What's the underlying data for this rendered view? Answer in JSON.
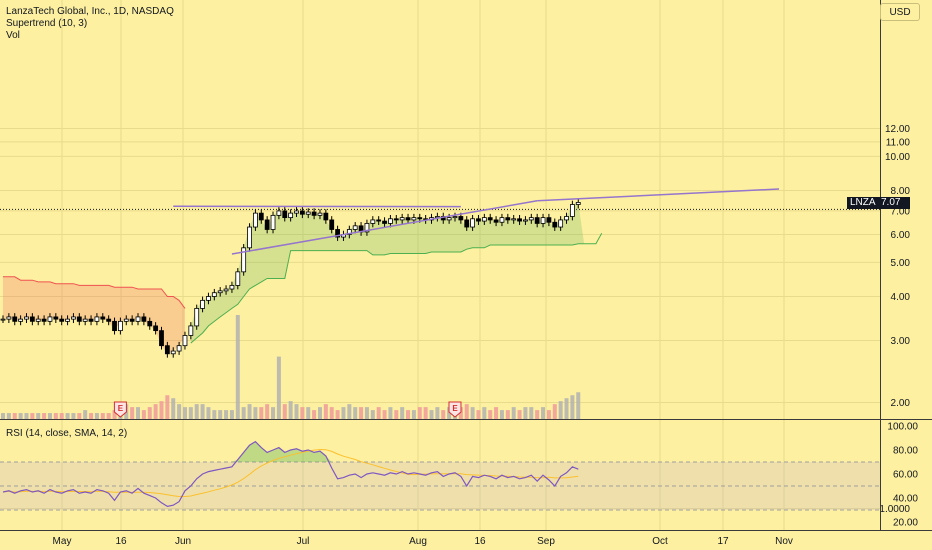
{
  "header": {
    "title": "LanzaTech Global, Inc., 1D, NASDAQ",
    "indicator_supertrend": "Supertrend (10, 3)",
    "indicator_vol": "Vol",
    "currency": "USD"
  },
  "rsi_panel": {
    "label": "RSI (14, close, SMA, 14, 2)"
  },
  "current_price": {
    "symbol": "LNZA",
    "value": "7.07",
    "price": 7.07
  },
  "earnings_marker_label": "E",
  "colors": {
    "background": "#fdf0a0",
    "candle_body": "#000000",
    "supertrend_up": "#4caf50",
    "supertrend_down": "#ef5350",
    "trendline": "#9575cd",
    "rsi_line": "#7e57c2",
    "volume_up": "#b2b2b2",
    "volume_down": "#ef9a9a"
  },
  "chart_data": [
    {
      "type": "candlestick",
      "title": "LanzaTech Global, Inc., 1D, NASDAQ",
      "x_ticks": [
        "May",
        "16",
        "Jun",
        "Jul",
        "Aug",
        "16",
        "Sep",
        "Oct",
        "17",
        "Nov"
      ],
      "y_ticks": [
        "1.0000",
        "2.00",
        "3.00",
        "4.00",
        "5.00",
        "6.00",
        "7.00",
        "8.00",
        "10.00",
        "11.00",
        "12.00"
      ],
      "scale": "log",
      "ylim": [
        0.7,
        13.5
      ],
      "closes": [
        3.45,
        3.5,
        3.4,
        3.45,
        3.5,
        3.4,
        3.45,
        3.4,
        3.5,
        3.45,
        3.4,
        3.45,
        3.5,
        3.4,
        3.45,
        3.4,
        3.5,
        3.45,
        3.4,
        3.2,
        3.4,
        3.45,
        3.4,
        3.5,
        3.4,
        3.3,
        3.2,
        2.9,
        2.75,
        2.8,
        2.9,
        3.1,
        3.3,
        3.7,
        3.9,
        4.0,
        4.1,
        4.15,
        4.2,
        4.3,
        4.7,
        5.5,
        6.3,
        6.9,
        6.6,
        6.2,
        6.8,
        7.0,
        6.7,
        6.9,
        7.0,
        6.85,
        6.95,
        6.8,
        6.9,
        6.6,
        6.2,
        5.9,
        6.0,
        6.2,
        6.35,
        6.1,
        6.45,
        6.6,
        6.55,
        6.45,
        6.65,
        6.6,
        6.7,
        6.6,
        6.7,
        6.65,
        6.6,
        6.7,
        6.75,
        6.6,
        6.7,
        6.75,
        6.6,
        6.3,
        6.65,
        6.55,
        6.7,
        6.6,
        6.5,
        6.7,
        6.6,
        6.65,
        6.55,
        6.6,
        6.7,
        6.45,
        6.7,
        6.5,
        6.3,
        6.6,
        6.75,
        7.3,
        7.4
      ],
      "supertrend": {
        "down": [
          4.55,
          4.55,
          4.55,
          4.45,
          4.45,
          4.45,
          4.4,
          4.4,
          4.4,
          4.35,
          4.35,
          4.35,
          4.35,
          4.3,
          4.3,
          4.3,
          4.3,
          4.3,
          4.3,
          4.25,
          4.25,
          4.25,
          4.25,
          4.2,
          4.2,
          4.2,
          4.2,
          4.2,
          4.0,
          4.0,
          3.9,
          3.7
        ],
        "up": [
          2.95,
          3.05,
          3.15,
          3.3,
          3.4,
          3.5,
          3.6,
          3.7,
          3.8,
          4.0,
          4.2,
          4.3,
          4.4,
          4.5,
          4.5,
          4.5,
          4.5,
          5.4,
          5.4,
          5.4,
          5.4,
          5.4,
          5.4,
          5.4,
          5.4,
          5.4,
          5.4,
          5.4,
          5.4,
          5.4,
          5.4,
          5.25,
          5.25,
          5.25,
          5.3,
          5.3,
          5.3,
          5.3,
          5.3,
          5.3,
          5.3,
          5.35,
          5.35,
          5.35,
          5.35,
          5.35,
          5.35,
          5.45,
          5.5,
          5.5,
          5.5,
          5.6,
          5.6,
          5.6,
          5.6,
          5.6,
          5.6,
          5.6,
          5.6,
          5.6,
          5.6,
          5.6,
          5.6,
          5.6,
          5.6,
          5.6,
          5.65,
          5.65,
          5.65,
          5.65,
          6.05
        ]
      },
      "trendlines": [
        {
          "from": [
            29,
            7.22
          ],
          "to": [
            78,
            7.2
          ]
        },
        {
          "from": [
            39,
            5.28
          ],
          "to": [
            91,
            7.48
          ]
        }
      ]
    },
    {
      "type": "bar",
      "title": "Vol",
      "volumes": [
        2,
        2,
        2,
        2,
        2,
        2,
        2,
        2,
        2,
        2,
        2,
        2,
        2,
        2,
        3,
        2,
        2,
        2,
        2,
        3,
        3,
        5,
        4,
        4,
        3,
        4,
        5,
        6,
        8,
        7,
        5,
        4,
        4,
        5,
        5,
        4,
        3,
        3,
        3,
        3,
        35,
        4,
        5,
        4,
        4,
        5,
        4,
        21,
        5,
        6,
        5,
        4,
        4,
        3,
        4,
        5,
        4,
        3,
        4,
        5,
        4,
        4,
        4,
        3,
        4,
        3,
        4,
        3,
        4,
        3,
        3,
        4,
        4,
        3,
        4,
        3,
        4,
        3,
        4,
        5,
        4,
        3,
        4,
        3,
        4,
        3,
        3,
        4,
        3,
        4,
        4,
        3,
        4,
        3,
        5,
        6,
        7,
        8,
        9
      ]
    },
    {
      "type": "line",
      "title": "RSI (14, close, SMA, 14, 2)",
      "y_ticks": [
        "20.00",
        "40.00",
        "60.00",
        "80.00",
        "100.00"
      ],
      "ylim": [
        15,
        105
      ],
      "bands": [
        30,
        50,
        70
      ],
      "rsi": [
        45,
        46,
        44,
        46,
        47,
        45,
        46,
        44,
        47,
        45,
        44,
        46,
        47,
        44,
        45,
        44,
        47,
        46,
        44,
        38,
        45,
        46,
        44,
        48,
        44,
        42,
        40,
        36,
        33,
        34,
        37,
        46,
        50,
        56,
        60,
        62,
        63,
        64,
        65,
        66,
        72,
        78,
        84,
        87,
        82,
        78,
        80,
        82,
        78,
        80,
        81,
        79,
        80,
        78,
        79,
        75,
        65,
        56,
        57,
        59,
        60,
        57,
        60,
        61,
        60,
        59,
        61,
        60,
        62,
        60,
        61,
        60,
        59,
        61,
        62,
        58,
        60,
        61,
        58,
        50,
        58,
        57,
        59,
        58,
        56,
        59,
        57,
        58,
        56,
        57,
        59,
        54,
        59,
        55,
        50,
        58,
        61,
        66,
        64
      ]
    }
  ]
}
